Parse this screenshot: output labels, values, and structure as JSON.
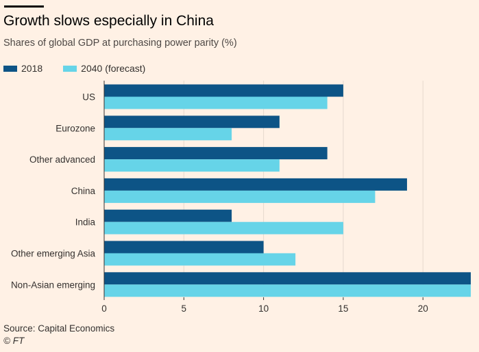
{
  "chart_data": {
    "type": "bar",
    "orientation": "horizontal",
    "title": "Growth slows especially in China",
    "subtitle": "Shares of global GDP at purchasing power parity (%)",
    "categories": [
      "US",
      "Eurozone",
      "Other advanced",
      "China",
      "India",
      "Other emerging Asia",
      "Non-Asian emerging"
    ],
    "series": [
      {
        "name": "2018",
        "color": "#0d5486",
        "values": [
          15,
          11,
          14,
          19,
          8,
          10,
          23
        ]
      },
      {
        "name": "2040 (forecast)",
        "color": "#66d4e8",
        "values": [
          14,
          8,
          11,
          17,
          15,
          12,
          23
        ]
      }
    ],
    "xlim": [
      0,
      23
    ],
    "xticks": [
      0,
      5,
      10,
      15,
      20
    ],
    "grid": true,
    "legend": "top-left",
    "source": "Source: Capital Economics",
    "copyright": "© FT"
  }
}
